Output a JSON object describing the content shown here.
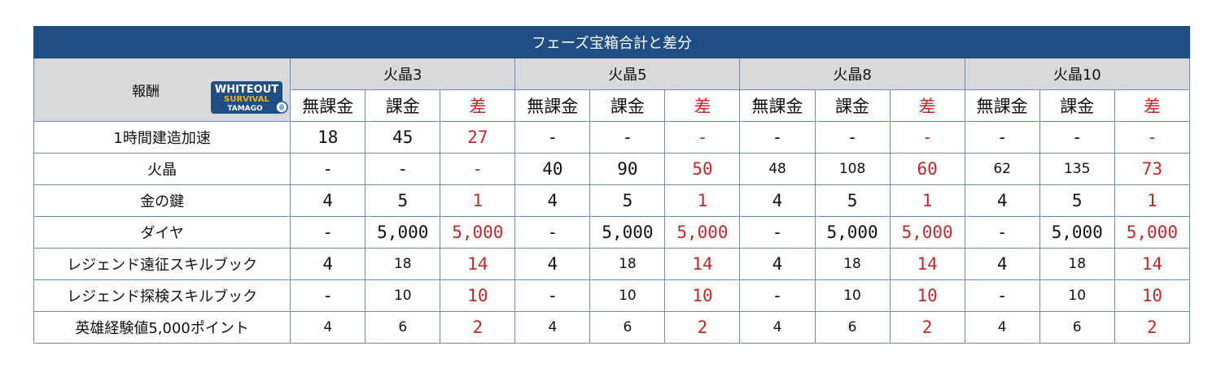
{
  "title": "フェーズ宝箱合計と差分",
  "reward_header": "報酬",
  "logo": {
    "line1": "WHITEOUT",
    "line2": "SURVIVAL",
    "line3": "TAMAGO"
  },
  "groups": [
    "火晶3",
    "火晶5",
    "火晶8",
    "火晶10"
  ],
  "subheaders": [
    "無課金",
    "課金",
    "差"
  ],
  "rows": [
    {
      "label": "1時間建造加速",
      "cells": [
        "18",
        "45",
        "27",
        "-",
        "-",
        "-",
        "-",
        "-",
        "-",
        "-",
        "-",
        "-"
      ]
    },
    {
      "label": "火晶",
      "cells": [
        "-",
        "-",
        "-",
        "40",
        "90",
        "50",
        "48",
        "108",
        "60",
        "62",
        "135",
        "73"
      ]
    },
    {
      "label": "金の鍵",
      "cells": [
        "4",
        "5",
        "1",
        "4",
        "5",
        "1",
        "4",
        "5",
        "1",
        "4",
        "5",
        "1"
      ]
    },
    {
      "label": "ダイヤ",
      "cells": [
        "-",
        "5,000",
        "5,000",
        "-",
        "5,000",
        "5,000",
        "-",
        "5,000",
        "5,000",
        "-",
        "5,000",
        "5,000"
      ]
    },
    {
      "label": "レジェンド遠征スキルブック",
      "cells": [
        "4",
        "18",
        "14",
        "4",
        "18",
        "14",
        "4",
        "18",
        "14",
        "4",
        "18",
        "14"
      ]
    },
    {
      "label": "レジェンド探検スキルブック",
      "cells": [
        "-",
        "10",
        "10",
        "-",
        "10",
        "10",
        "-",
        "10",
        "10",
        "-",
        "10",
        "10"
      ]
    },
    {
      "label": "英雄経験値5,000ポイント",
      "cells": [
        "4",
        "6",
        "2",
        "4",
        "6",
        "2",
        "4",
        "6",
        "2",
        "4",
        "6",
        "2"
      ]
    }
  ]
}
